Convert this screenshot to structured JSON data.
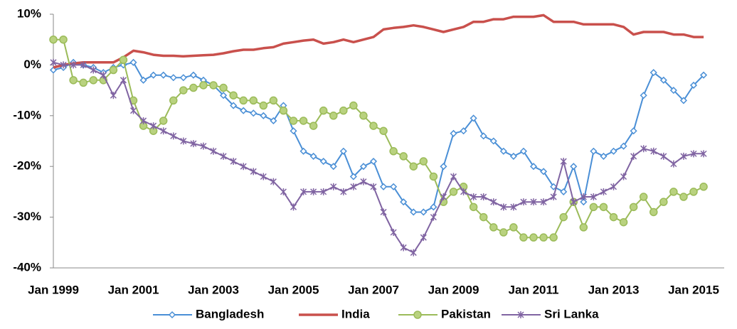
{
  "chart_data": {
    "type": "line",
    "categories": [
      "Jan 1999",
      null,
      null,
      null,
      null,
      null,
      null,
      null,
      "Jan 2001",
      null,
      null,
      null,
      null,
      null,
      null,
      null,
      "Jan 2003",
      null,
      null,
      null,
      null,
      null,
      null,
      null,
      "Jan 2005",
      null,
      null,
      null,
      null,
      null,
      null,
      null,
      "Jan 2007",
      null,
      null,
      null,
      null,
      null,
      null,
      null,
      "Jan 2009",
      null,
      null,
      null,
      null,
      null,
      null,
      null,
      "Jan 2011",
      null,
      null,
      null,
      null,
      null,
      null,
      null,
      "Jan 2013",
      null,
      null,
      null,
      null,
      null,
      null,
      null,
      "Jan 2015",
      null
    ],
    "series": [
      {
        "name": "Bangladesh",
        "color": "#4a8fd6",
        "marker": "diamond",
        "values": [
          -1,
          -0.5,
          0.5,
          0,
          -0.5,
          -1.5,
          -0.5,
          0,
          0.5,
          -3,
          -2,
          -2,
          -2.5,
          -2.5,
          -2,
          -3,
          -4,
          -6,
          -8,
          -9,
          -9.5,
          -10,
          -11,
          -8,
          -13,
          -17,
          -18,
          -19,
          -20,
          -17,
          -22,
          -20,
          -19,
          -24,
          -24,
          -27,
          -29,
          -29,
          -28,
          -20,
          -13.5,
          -13,
          -10.5,
          -14,
          -15,
          -17,
          -18,
          -17,
          -20,
          -21,
          -24,
          -25,
          -20,
          -27,
          -17,
          -18,
          -17,
          -16,
          -13,
          -6,
          -1.5,
          -3,
          -5,
          -7,
          -4,
          -2
        ]
      },
      {
        "name": "India",
        "color": "#c9504c",
        "marker": "none",
        "values": [
          -0.5,
          0,
          0.3,
          0.5,
          0.5,
          0.5,
          0.5,
          1.5,
          2.8,
          2.5,
          2,
          1.8,
          1.8,
          1.7,
          1.8,
          1.9,
          2,
          2.3,
          2.7,
          3,
          3,
          3.3,
          3.5,
          4.2,
          4.5,
          4.8,
          5,
          4.2,
          4.5,
          5,
          4.5,
          5,
          5.5,
          7,
          7.3,
          7.5,
          7.8,
          7.5,
          7,
          6.5,
          7,
          7.5,
          8.5,
          8.5,
          9,
          9,
          9.5,
          9.5,
          9.5,
          9.8,
          8.5,
          8.5,
          8.5,
          8,
          8,
          8,
          8,
          7.5,
          6,
          6.5,
          6.5,
          6.5,
          6,
          6,
          5.5,
          5.5
        ]
      },
      {
        "name": "Pakistan",
        "color": "#9bbb59",
        "marker": "circle",
        "values": [
          5,
          5,
          -3,
          -3.5,
          -3,
          -3,
          -1,
          1,
          -7,
          -12,
          -13,
          -11,
          -7,
          -5,
          -4.5,
          -4,
          -4,
          -4.5,
          -6,
          -7,
          -7,
          -8,
          -7,
          -9,
          -11,
          -11,
          -12,
          -9,
          -10,
          -9,
          -8,
          -10,
          -12,
          -13,
          -17,
          -18,
          -20,
          -19,
          -22,
          -27,
          -25,
          -24,
          -28,
          -30,
          -32,
          -33,
          -32,
          -34,
          -34,
          -34,
          -34,
          -30,
          -27,
          -32,
          -28,
          -28,
          -30,
          -31,
          -28,
          -26,
          -29,
          -27,
          -25,
          -26,
          -25,
          -24
        ]
      },
      {
        "name": "Sri Lanka",
        "color": "#8064a2",
        "marker": "star",
        "values": [
          0.5,
          0,
          0,
          0,
          -1,
          -2,
          -6,
          -3,
          -9,
          -11,
          -12,
          -13,
          -14,
          -15,
          -15.5,
          -16,
          -17,
          -18,
          -19,
          -20,
          -21,
          -22,
          -23,
          -25,
          -28,
          -25,
          -25,
          -25,
          -24,
          -25,
          -24,
          -23,
          -24,
          -29,
          -33,
          -36,
          -37,
          -34,
          -30,
          -26,
          -22,
          -25,
          -26,
          -26,
          -27,
          -28,
          -28,
          -27,
          -27,
          -27,
          -26,
          -19,
          -27,
          -26,
          -26,
          -25,
          -24,
          -22,
          -18,
          -16.5,
          -17,
          -18,
          -19.5,
          -18,
          -17.5,
          -17.5
        ]
      }
    ],
    "ylim": [
      -40,
      10
    ],
    "yticks": [
      {
        "value": -40,
        "label": "-40%"
      },
      {
        "value": -30,
        "label": "-30%"
      },
      {
        "value": -20,
        "label": "-20%"
      },
      {
        "value": -10,
        "label": "-10%"
      },
      {
        "value": 0,
        "label": "0%"
      },
      {
        "value": 10,
        "label": "10%"
      }
    ],
    "legend": "bottom"
  }
}
